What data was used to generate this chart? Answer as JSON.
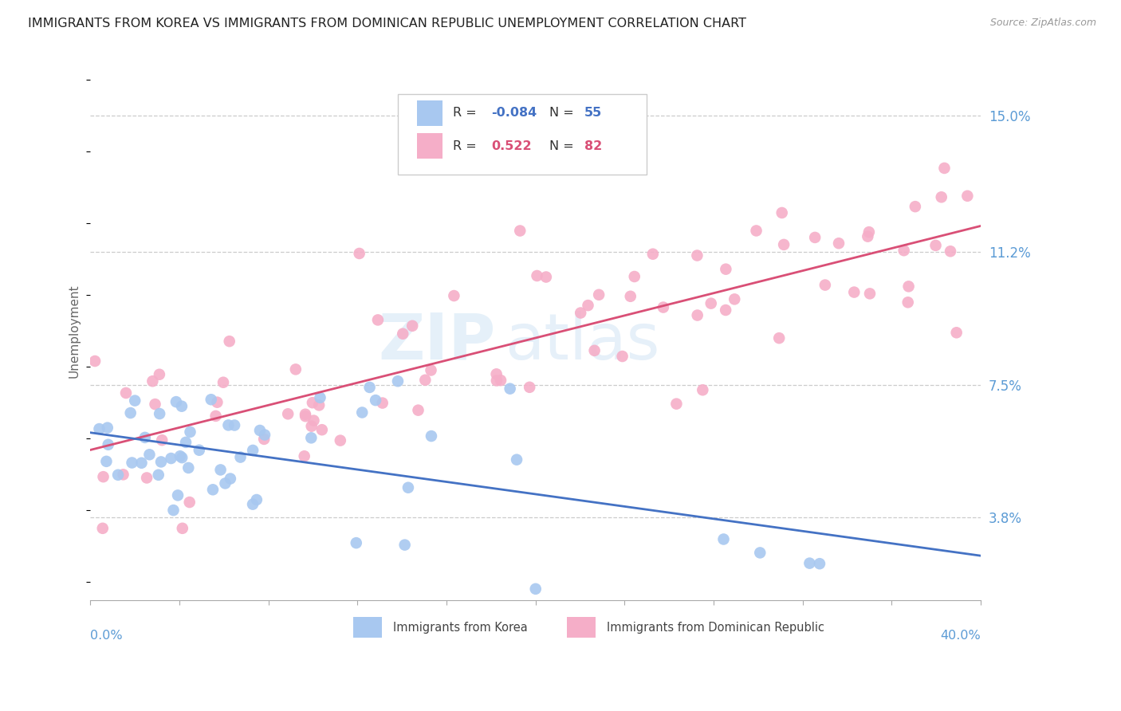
{
  "title": "IMMIGRANTS FROM KOREA VS IMMIGRANTS FROM DOMINICAN REPUBLIC UNEMPLOYMENT CORRELATION CHART",
  "source": "Source: ZipAtlas.com",
  "ylabel": "Unemployment",
  "yticks": [
    3.8,
    7.5,
    11.2,
    15.0
  ],
  "xlim": [
    0.0,
    40.0
  ],
  "ylim": [
    1.5,
    16.5
  ],
  "korea_R": -0.084,
  "korea_N": 55,
  "dr_R": 0.522,
  "dr_N": 82,
  "korea_color": "#a8c8f0",
  "dr_color": "#f5aec8",
  "korea_line_color": "#4472c4",
  "dr_line_color": "#d94f76",
  "background_color": "#ffffff",
  "grid_color": "#cccccc",
  "title_fontsize": 11.5,
  "axis_label_color": "#5b9bd5",
  "watermark_color": "#d0e4f5"
}
